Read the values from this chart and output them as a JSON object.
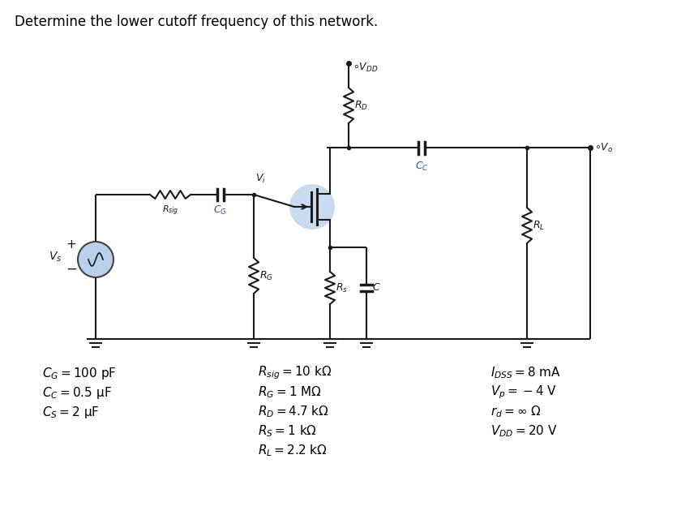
{
  "title": "Determine the lower cutoff frequency of this network.",
  "title_fontsize": 12,
  "bg_color": "#ffffff",
  "text_color": "#000000",
  "circuit_color": "#1a1a1a",
  "mosfet_fill": "#b8d0ea",
  "vs_fill": "#b8d0ea",
  "wire_lw": 1.5,
  "component_lw": 1.5,
  "params_left_labels": [
    "$C_G = 100$ pF",
    "$C_C = 0.5$ μF",
    "$C_S = 2$ μF"
  ],
  "params_mid_labels": [
    "$R_{sig} = 10$ kΩ",
    "$R_G = 1$ MΩ",
    "$R_D = 4.7$ kΩ",
    "$R_S = 1$ kΩ",
    "$R_L = 2.2$ kΩ"
  ],
  "params_right_labels": [
    "$I_{DSS} = 8$ mA",
    "$V_p = -4$ V",
    "$r_d = ∞$ Ω",
    "$V_{DD} = 20$ V"
  ]
}
